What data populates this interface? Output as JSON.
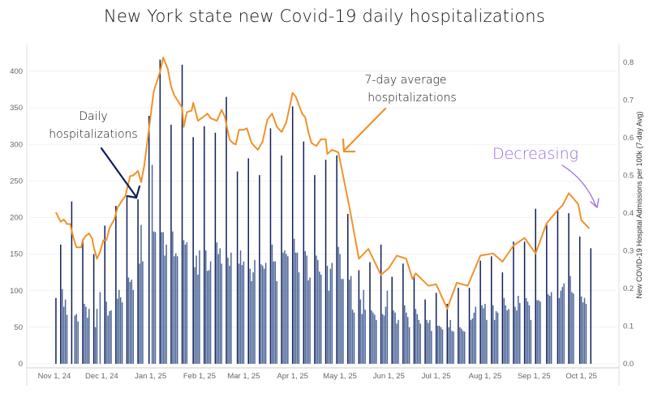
{
  "chart_data": {
    "type": "bar+line",
    "title": "New York state new Covid-19 daily hospitalizations",
    "x_ticks": [
      {
        "label": "Nov 1, 24",
        "day": 0
      },
      {
        "label": "Dec 1, 24",
        "day": 30
      },
      {
        "label": "Jan 1, 25",
        "day": 61
      },
      {
        "label": "Feb 1, 25",
        "day": 92
      },
      {
        "label": "Mar 1, 25",
        "day": 120
      },
      {
        "label": "Apr 1, 25",
        "day": 151
      },
      {
        "label": "May 1, 25",
        "day": 181
      },
      {
        "label": "Jun 1, 25",
        "day": 212
      },
      {
        "label": "Jul 1, 25",
        "day": 242
      },
      {
        "label": "Aug 1, 25",
        "day": 273
      },
      {
        "label": "Sep 1, 25",
        "day": 304
      },
      {
        "label": "Oct 1, 25",
        "day": 334
      }
    ],
    "y_left": {
      "ticks": [
        "0",
        "50",
        "100",
        "150",
        "200",
        "250",
        "300",
        "350",
        "400"
      ],
      "ylim": [
        0,
        400
      ],
      "label": ""
    },
    "y_right": {
      "ticks": [
        "0.0",
        "0.1",
        "0.2",
        "0.3",
        "0.4",
        "0.5",
        "0.6",
        "0.7",
        "0.8"
      ],
      "ylim": [
        0,
        0.8
      ],
      "label": "New COVID-19 Hospital Admissions per 100k (7-day Avg)"
    },
    "grid": true,
    "series": [
      {
        "name": "Daily hospitalizations",
        "type": "bar",
        "axis": "left",
        "color_peak": "#0f1f5a",
        "color": "#4d6799",
        "weeks": [
          {
            "start": 1,
            "values": [
              90
            ]
          },
          {
            "start": 4,
            "values": [
              163,
              102,
              78,
              88,
              67
            ]
          },
          {
            "start": 11,
            "values": [
              222,
              0,
              66,
              68,
              58
            ]
          },
          {
            "start": 18,
            "values": [
              170,
              82,
              78,
              63,
              75
            ]
          },
          {
            "start": 25,
            "values": [
              150,
              50,
              75,
              0,
              98
            ]
          },
          {
            "start": 32,
            "values": [
              189,
              85,
              66,
              72,
              73
            ]
          },
          {
            "start": 39,
            "values": [
              216,
              89,
              101,
              91,
              84
            ]
          },
          {
            "start": 46,
            "values": [
              230,
              118,
              112,
              115,
              101
            ]
          },
          {
            "start": 53,
            "values": [
              225,
              137,
              190,
              140
            ]
          },
          {
            "start": 60,
            "values": [
              339,
              0,
              272,
              181,
              180
            ]
          },
          {
            "start": 67,
            "values": [
              416,
              180,
              180,
              148,
              163
            ]
          },
          {
            "start": 74,
            "values": [
              327,
              181,
              147,
              151,
              147
            ]
          },
          {
            "start": 81,
            "values": [
              409,
              169,
              163,
              166
            ]
          },
          {
            "start": 88,
            "values": [
              310,
              132,
              148,
              122,
              155
            ]
          },
          {
            "start": 95,
            "values": [
              325,
              155,
              127,
              128,
              140
            ]
          },
          {
            "start": 102,
            "values": [
              316,
              166,
              150,
              158,
              137
            ]
          },
          {
            "start": 109,
            "values": [
              365,
              145,
              134,
              152
            ]
          },
          {
            "start": 116,
            "values": [
              263,
              137,
              155,
              135,
              140
            ]
          },
          {
            "start": 123,
            "values": [
              281,
              130,
              113,
              125,
              142
            ]
          },
          {
            "start": 130,
            "values": [
              258,
              136,
              134,
              130,
              138
            ]
          },
          {
            "start": 137,
            "values": [
              322,
              163,
              140,
              140,
              113
            ]
          },
          {
            "start": 144,
            "values": [
              285,
              152,
              155,
              150,
              147
            ]
          },
          {
            "start": 151,
            "values": [
              352,
              171,
              152,
              152,
              125
            ]
          },
          {
            "start": 158,
            "values": [
              304,
              154,
              148,
              114,
              118
            ]
          },
          {
            "start": 165,
            "values": [
              258,
              148,
              142,
              126,
              122
            ]
          },
          {
            "start": 172,
            "values": [
              279,
              134,
              100,
              130,
              138
            ]
          },
          {
            "start": 179,
            "values": [
              285,
              160,
              150,
              116,
              116
            ]
          },
          {
            "start": 186,
            "values": [
              205,
              115,
              120,
              74,
              70
            ]
          },
          {
            "start": 193,
            "values": [
              128,
              88,
              68,
              101,
              74
            ]
          },
          {
            "start": 200,
            "values": [
              139,
              73,
              70,
              67,
              60
            ]
          },
          {
            "start": 207,
            "values": [
              163,
              68,
              66,
              78,
              100
            ]
          },
          {
            "start": 214,
            "values": [
              119,
              73,
              70,
              55,
              60
            ]
          },
          {
            "start": 221,
            "values": [
              137,
              80,
              70,
              64,
              50
            ]
          },
          {
            "start": 228,
            "values": [
              120,
              75,
              68,
              60,
              55
            ]
          },
          {
            "start": 235,
            "values": [
              88,
              60,
              56,
              60,
              45
            ]
          },
          {
            "start": 242,
            "values": [
              97,
              52,
              52,
              50,
              47
            ]
          },
          {
            "start": 249,
            "values": [
              82,
              50,
              60,
              45,
              44
            ]
          },
          {
            "start": 256,
            "values": [
              104,
              50,
              48,
              45,
              44
            ]
          },
          {
            "start": 263,
            "values": [
              104,
              60,
              62,
              70,
              78
            ]
          },
          {
            "start": 270,
            "values": [
              141,
              80,
              76,
              82,
              60
            ]
          },
          {
            "start": 277,
            "values": [
              147,
              80,
              60,
              72,
              70
            ]
          },
          {
            "start": 284,
            "values": [
              125,
              90,
              80,
              73,
              75
            ]
          },
          {
            "start": 291,
            "values": [
              167,
              78,
              73,
              93,
              83
            ]
          },
          {
            "start": 298,
            "values": [
              167,
              90,
              85,
              80,
              60
            ]
          },
          {
            "start": 305,
            "values": [
              212,
              87,
              87,
              85
            ]
          },
          {
            "start": 312,
            "values": [
              191,
              95,
              93,
              98
            ]
          },
          {
            "start": 319,
            "values": [
              210,
              90,
              100,
              105,
              110
            ]
          },
          {
            "start": 326,
            "values": [
              206,
              120,
              98,
              96
            ]
          },
          {
            "start": 333,
            "values": [
              174,
              92,
              84,
              90,
              82
            ]
          },
          {
            "start": 340,
            "values": [
              158
            ]
          }
        ]
      },
      {
        "name": "7-day average hospitalizations",
        "type": "line",
        "axis": "right",
        "color": "#f0922b",
        "points": [
          [
            1,
            0.402
          ],
          [
            4,
            0.377
          ],
          [
            6,
            0.383
          ],
          [
            8,
            0.371
          ],
          [
            10,
            0.371
          ],
          [
            12,
            0.336
          ],
          [
            14,
            0.309
          ],
          [
            17,
            0.309
          ],
          [
            18,
            0.328
          ],
          [
            20,
            0.34
          ],
          [
            22,
            0.346
          ],
          [
            24,
            0.332
          ],
          [
            25,
            0.309
          ],
          [
            27,
            0.279
          ],
          [
            29,
            0.297
          ],
          [
            31,
            0.328
          ],
          [
            33,
            0.328
          ],
          [
            35,
            0.361
          ],
          [
            38,
            0.383
          ],
          [
            40,
            0.414
          ],
          [
            43,
            0.434
          ],
          [
            45,
            0.445
          ],
          [
            48,
            0.498
          ],
          [
            50,
            0.5
          ],
          [
            53,
            0.512
          ],
          [
            55,
            0.482
          ],
          [
            57,
            0.527
          ],
          [
            60,
            0.625
          ],
          [
            63,
            0.723
          ],
          [
            67,
            0.775
          ],
          [
            69,
            0.813
          ],
          [
            72,
            0.781
          ],
          [
            74,
            0.736
          ],
          [
            76,
            0.713
          ],
          [
            79,
            0.693
          ],
          [
            81,
            0.68
          ],
          [
            82,
            0.629
          ],
          [
            84,
            0.668
          ],
          [
            87,
            0.672
          ],
          [
            88,
            0.693
          ],
          [
            91,
            0.645
          ],
          [
            94,
            0.654
          ],
          [
            97,
            0.664
          ],
          [
            99,
            0.652
          ],
          [
            103,
            0.645
          ],
          [
            106,
            0.674
          ],
          [
            108,
            0.656
          ],
          [
            111,
            0.596
          ],
          [
            113,
            0.586
          ],
          [
            115,
            0.582
          ],
          [
            117,
            0.621
          ],
          [
            120,
            0.621
          ],
          [
            122,
            0.625
          ],
          [
            125,
            0.586
          ],
          [
            129,
            0.568
          ],
          [
            132,
            0.59
          ],
          [
            135,
            0.648
          ],
          [
            138,
            0.664
          ],
          [
            141,
            0.629
          ],
          [
            144,
            0.615
          ],
          [
            147,
            0.641
          ],
          [
            151,
            0.719
          ],
          [
            153,
            0.709
          ],
          [
            157,
            0.664
          ],
          [
            159,
            0.654
          ],
          [
            161,
            0.615
          ],
          [
            163,
            0.586
          ],
          [
            166,
            0.578
          ],
          [
            169,
            0.596
          ],
          [
            172,
            0.596
          ],
          [
            173,
            0.557
          ],
          [
            176,
            0.568
          ],
          [
            180,
            0.561
          ],
          [
            187,
            0.416
          ],
          [
            193,
            0.279
          ],
          [
            199,
            0.305
          ],
          [
            207,
            0.236
          ],
          [
            212,
            0.254
          ],
          [
            217,
            0.287
          ],
          [
            223,
            0.279
          ],
          [
            227,
            0.225
          ],
          [
            229,
            0.24
          ],
          [
            237,
            0.207
          ],
          [
            242,
            0.211
          ],
          [
            249,
            0.146
          ],
          [
            255,
            0.215
          ],
          [
            262,
            0.207
          ],
          [
            270,
            0.287
          ],
          [
            278,
            0.293
          ],
          [
            284,
            0.271
          ],
          [
            291,
            0.314
          ],
          [
            298,
            0.334
          ],
          [
            305,
            0.293
          ],
          [
            312,
            0.373
          ],
          [
            319,
            0.408
          ],
          [
            322,
            0.42
          ],
          [
            326,
            0.453
          ],
          [
            332,
            0.424
          ],
          [
            334,
            0.381
          ],
          [
            339,
            0.359
          ]
        ]
      }
    ],
    "annotations": [
      {
        "lines": [
          "Daily",
          "hospitalizations"
        ],
        "color": "#111111",
        "arrow_color": "#0f1f5a"
      },
      {
        "lines": [
          "7-day average",
          "hospitalizations"
        ],
        "color": "#111111",
        "arrow_color": "#f0922b"
      },
      {
        "lines": [
          "Decreasing"
        ],
        "color": "#9b6bdc",
        "arrow_color": "#9b6bdc"
      }
    ]
  }
}
